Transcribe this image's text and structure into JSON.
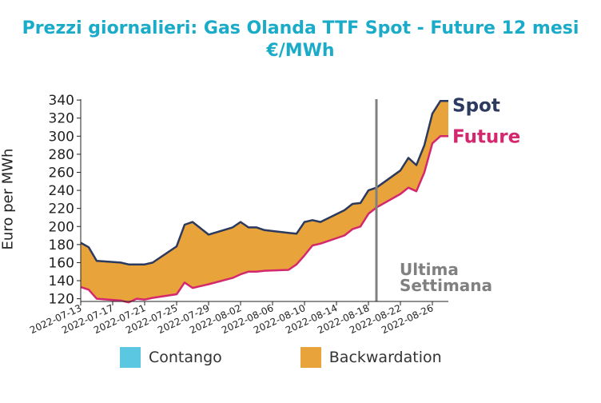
{
  "chart_data": {
    "type": "area",
    "title": "Prezzi giornalieri: Gas Olanda TTF Spot - Future 12 mesi",
    "subtitle": "€/MWh",
    "ylabel": "Euro per MWh",
    "xlabel": "",
    "ylim": [
      117,
      341
    ],
    "yticks": [
      120,
      140,
      160,
      180,
      200,
      220,
      240,
      260,
      280,
      300,
      320,
      340
    ],
    "xtick_labels": [
      "2022-07-13",
      "2022-07-17",
      "2022-07-21",
      "2022-07-25",
      "2022-07-29",
      "2022-08-02",
      "2022-08-06",
      "2022-08-10",
      "2022-08-14",
      "2022-08-18",
      "2022-08-22",
      "2022-08-26"
    ],
    "x": [
      "2022-07-13",
      "2022-07-14",
      "2022-07-15",
      "2022-07-18",
      "2022-07-19",
      "2022-07-20",
      "2022-07-21",
      "2022-07-22",
      "2022-07-25",
      "2022-07-26",
      "2022-07-27",
      "2022-07-28",
      "2022-07-29",
      "2022-08-01",
      "2022-08-02",
      "2022-08-03",
      "2022-08-04",
      "2022-08-05",
      "2022-08-08",
      "2022-08-09",
      "2022-08-10",
      "2022-08-11",
      "2022-08-12",
      "2022-08-15",
      "2022-08-16",
      "2022-08-17",
      "2022-08-18",
      "2022-08-19",
      "2022-08-22",
      "2022-08-23",
      "2022-08-24",
      "2022-08-25",
      "2022-08-26",
      "2022-08-27",
      "2022-08-28"
    ],
    "series": [
      {
        "name": "Spot",
        "color": "#2b3a5e",
        "values": [
          182,
          177,
          162,
          160,
          158,
          158,
          158,
          160,
          178,
          202,
          205,
          198,
          191,
          199,
          205,
          199,
          199,
          196,
          193,
          192,
          205,
          207,
          205,
          218,
          225,
          226,
          240,
          243,
          262,
          276,
          268,
          290,
          325,
          339,
          339
        ]
      },
      {
        "name": "Future",
        "color": "#d4286e",
        "values": [
          133,
          130,
          120,
          118,
          116,
          120,
          119,
          121,
          125,
          138,
          132,
          134,
          136,
          143,
          147,
          150,
          150,
          151,
          152,
          158,
          168,
          179,
          181,
          190,
          197,
          200,
          214,
          221,
          236,
          243,
          239,
          260,
          292,
          300,
          300
        ]
      }
    ],
    "end_labels": [
      {
        "text": "Spot",
        "color": "#2b3a5e"
      },
      {
        "text": "Future",
        "color": "#d4286e"
      }
    ],
    "vline": {
      "x": "2022-08-19",
      "color": "#808080"
    },
    "annotation": {
      "line1": "Ultima",
      "line2": "Settimana",
      "color": "#808080"
    },
    "legend": [
      {
        "label": "Contango",
        "color": "#5bc7e0"
      },
      {
        "label": "Backwardation",
        "color": "#e8a33a"
      }
    ],
    "legend_position": "bottom",
    "fill_color": "#e8a33a",
    "grid": false
  }
}
